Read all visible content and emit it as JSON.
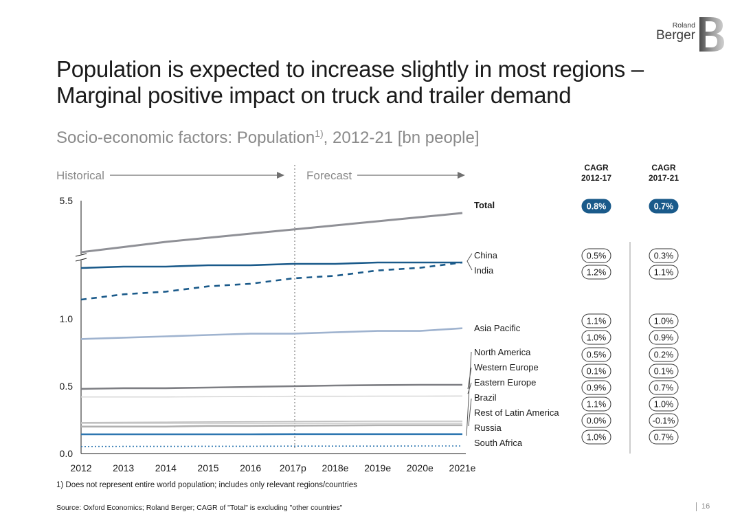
{
  "title": {
    "line1": "Population is expected to increase slightly in most regions –",
    "line2": "Marginal positive impact on truck and trailer demand"
  },
  "subtitle": {
    "text": "Socio-economic factors: Population",
    "sup": "1)",
    "suffix": ", 2012-21 [bn people]"
  },
  "logo": {
    "line1": "Roland",
    "line2": "Berger",
    "mark": "B"
  },
  "chart_data": {
    "type": "line",
    "title": "Socio-economic factors: Population1), 2012-21 [bn people]",
    "phases": {
      "historical": "Historical",
      "forecast": "Forecast"
    },
    "categories": [
      "2012",
      "2013",
      "2014",
      "2015",
      "2016",
      "2017p",
      "2018e",
      "2019e",
      "2020e",
      "2021e"
    ],
    "y_ticks": [
      "5.5",
      "1.0",
      "0.5",
      "0.0"
    ],
    "axis_break": true,
    "cagr_headers": [
      {
        "line1": "CAGR",
        "line2": "2012-17"
      },
      {
        "line1": "CAGR",
        "line2": "2017-21"
      }
    ],
    "series": [
      {
        "name": "Total",
        "bold": true,
        "color": "#8f9096",
        "dash": false,
        "values": [
          5.04,
          5.09,
          5.14,
          5.18,
          5.22,
          5.26,
          5.3,
          5.34,
          5.38,
          5.42
        ],
        "cagr_2012_17": "0.8%",
        "cagr_2017_21": "0.7%",
        "highlight": true
      },
      {
        "name": "China",
        "color": "#1a5a8a",
        "dash": false,
        "values": [
          1.36,
          1.37,
          1.37,
          1.38,
          1.38,
          1.39,
          1.39,
          1.4,
          1.4,
          1.4
        ],
        "cagr_2012_17": "0.5%",
        "cagr_2017_21": "0.3%"
      },
      {
        "name": "India",
        "color": "#1a5a8a",
        "dash": true,
        "values": [
          1.26,
          1.28,
          1.29,
          1.31,
          1.32,
          1.34,
          1.35,
          1.37,
          1.38,
          1.4
        ],
        "cagr_2012_17": "1.2%",
        "cagr_2017_21": "1.1%"
      },
      {
        "name": "Asia Pacific",
        "color": "#9fb3cf",
        "dash": false,
        "values": [
          0.85,
          0.86,
          0.87,
          0.88,
          0.89,
          0.89,
          0.9,
          0.91,
          0.91,
          0.93
        ],
        "cagr_2012_17": "1.1%",
        "cagr_2017_21": "1.0%"
      },
      {
        "name": "North America",
        "color": "#7d7e83",
        "dash": false,
        "values": [
          0.48,
          0.485,
          0.485,
          0.49,
          0.495,
          0.5,
          0.505,
          0.508,
          0.51,
          0.51
        ],
        "cagr_2012_17": "1.0%",
        "cagr_2017_21": "0.9%"
      },
      {
        "name": "Western Europe",
        "color": "#d8d8d8",
        "dash": false,
        "values": [
          0.42,
          0.42,
          0.42,
          0.422,
          0.423,
          0.425,
          0.425,
          0.426,
          0.426,
          0.427
        ],
        "cagr_2012_17": "0.5%",
        "cagr_2017_21": "0.2%"
      },
      {
        "name": "Eastern Europe",
        "color": "#c9c9c9",
        "dash": false,
        "values": [
          0.225,
          0.225,
          0.225,
          0.225,
          0.225,
          0.225,
          0.225,
          0.225,
          0.225,
          0.225
        ],
        "cagr_2012_17": "0.1%",
        "cagr_2017_21": "0.1%"
      },
      {
        "name": "Brazil",
        "color": "#b0b0b0",
        "dash": false,
        "values": [
          0.2,
          0.2,
          0.2,
          0.205,
          0.205,
          0.207,
          0.208,
          0.21,
          0.21,
          0.21
        ],
        "cagr_2012_17": "0.9%",
        "cagr_2017_21": "0.7%"
      },
      {
        "name": "Rest of Latin America",
        "color": "#bfbfbf",
        "dash": false,
        "values": [
          0.23,
          0.232,
          0.233,
          0.235,
          0.236,
          0.238,
          0.239,
          0.24,
          0.24,
          0.24
        ],
        "cagr_2012_17": "1.1%",
        "cagr_2017_21": "1.0%"
      },
      {
        "name": "Russia",
        "color": "#2d76b0",
        "dash": false,
        "values": [
          0.143,
          0.143,
          0.143,
          0.143,
          0.143,
          0.144,
          0.144,
          0.144,
          0.144,
          0.144
        ],
        "cagr_2012_17": "0.0%",
        "cagr_2017_21": "-0.1%"
      },
      {
        "name": "South Africa",
        "color": "#2d76b0",
        "dash": "dotted",
        "values": [
          0.052,
          0.053,
          0.053,
          0.054,
          0.054,
          0.055,
          0.055,
          0.055,
          0.056,
          0.056
        ],
        "cagr_2012_17": "1.0%",
        "cagr_2017_21": "0.7%"
      }
    ]
  },
  "footnote": "1) Does not represent entire world population; includes only relevant regions/countries",
  "source": "Source: Oxford Economics; Roland Berger; CAGR of \"Total\" is excluding \"other countries\"",
  "page_number": "16",
  "colors": {
    "accent": "#1a5a8a",
    "grid_text": "#8a8a8a"
  }
}
